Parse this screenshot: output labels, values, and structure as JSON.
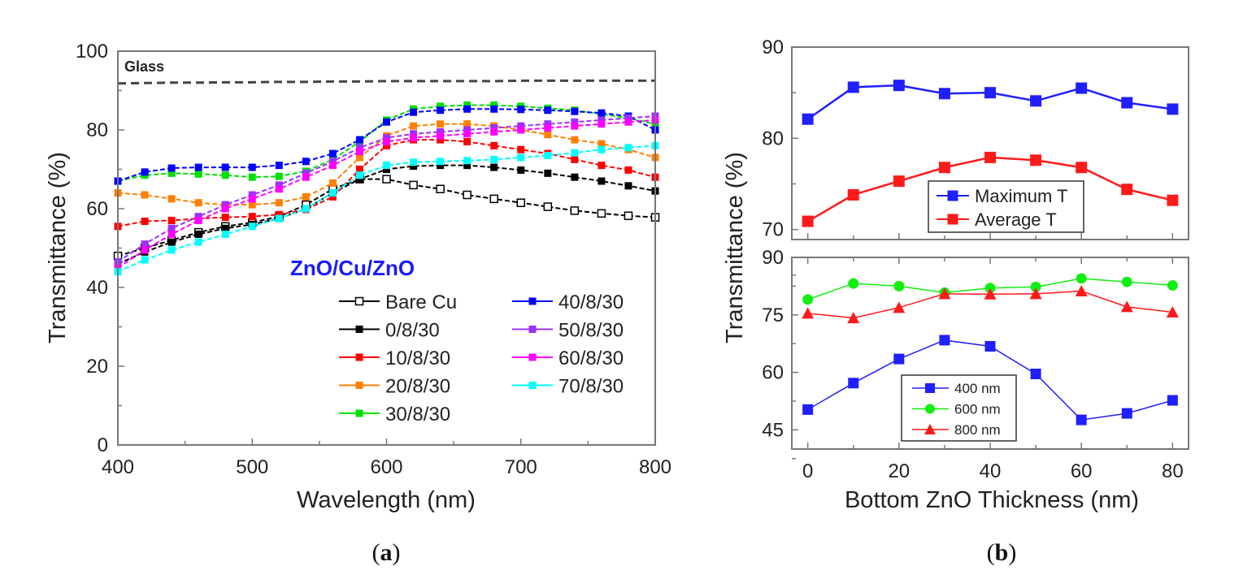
{
  "chart_data": [
    {
      "type": "line",
      "panel_label": "a",
      "xlabel": "Wavelength (nm)",
      "ylabel": "Transmittance (%)",
      "xlim": [
        400,
        800
      ],
      "ylim": [
        0,
        100
      ],
      "xticks": [
        400,
        500,
        600,
        700,
        800
      ],
      "yticks": [
        0,
        20,
        40,
        60,
        80,
        100
      ],
      "annotation": "Glass",
      "legend_title": "ZnO/Cu/ZnO",
      "legend_title_color": "#1a1aff",
      "legend_placement": "bottom-right",
      "x": [
        400,
        420,
        440,
        460,
        480,
        500,
        520,
        540,
        560,
        580,
        600,
        620,
        640,
        660,
        680,
        700,
        720,
        740,
        760,
        780,
        800
      ],
      "glass": {
        "name": "Glass",
        "color": "#444444",
        "values": [
          91.8,
          91.9,
          92,
          92,
          92.1,
          92.1,
          92.2,
          92.2,
          92.3,
          92.3,
          92.4,
          92.4,
          92.4,
          92.4,
          92.4,
          92.5,
          92.5,
          92.5,
          92.5,
          92.5,
          92.5
        ]
      },
      "series": [
        {
          "name": "Bare Cu",
          "color": "#000000",
          "open": true,
          "values": [
            48,
            50,
            52,
            54,
            55.5,
            56.5,
            58,
            61,
            65,
            67.5,
            67.5,
            66,
            65,
            63.5,
            62.5,
            61.5,
            60.5,
            59.5,
            58.8,
            58.2,
            57.8
          ]
        },
        {
          "name": "0/8/30",
          "color": "#000000",
          "values": [
            46,
            49,
            51.5,
            53.5,
            55,
            56,
            57.5,
            60,
            64,
            67.5,
            70,
            70.8,
            71,
            71,
            70.5,
            69.8,
            69,
            68,
            67,
            65.8,
            64.5
          ]
        },
        {
          "name": "10/8/30",
          "color": "#ff0000",
          "values": [
            55.5,
            56.8,
            57,
            57.5,
            57.8,
            58,
            58.5,
            59.8,
            63,
            70,
            76,
            77.5,
            77.5,
            77,
            76,
            75,
            74,
            72.5,
            71,
            69.8,
            68
          ]
        },
        {
          "name": "20/8/30",
          "color": "#ff8000",
          "values": [
            64,
            63.5,
            62.5,
            61.5,
            61,
            61,
            61.5,
            63,
            66.5,
            73,
            78.5,
            81,
            81.5,
            81.5,
            81,
            80,
            78.8,
            77.5,
            76.5,
            75,
            73
          ]
        },
        {
          "name": "30/8/30",
          "color": "#00e000",
          "values": [
            67,
            68.5,
            69,
            68.8,
            68.5,
            68,
            68.2,
            69.5,
            72.5,
            77,
            82.5,
            85.3,
            86,
            86.3,
            86.3,
            86,
            85.5,
            85,
            84,
            83,
            81.5
          ]
        },
        {
          "name": "40/8/30",
          "color": "#0000ff",
          "values": [
            67,
            69.3,
            70.3,
            70.5,
            70.5,
            70.5,
            71,
            72,
            74,
            77.5,
            82,
            84.5,
            85,
            85.3,
            85.3,
            85.2,
            85,
            84.7,
            84.3,
            83.5,
            80
          ]
        },
        {
          "name": "50/8/30",
          "color": "#9b30ff",
          "values": [
            46.5,
            51,
            55,
            58,
            61,
            63.5,
            66,
            69,
            72,
            75.5,
            78,
            79,
            79.5,
            80,
            80.5,
            81,
            81.5,
            82,
            82.5,
            83,
            83.5
          ]
        },
        {
          "name": "60/8/30",
          "color": "#ff00ff",
          "values": [
            45,
            49.5,
            53.5,
            57,
            60,
            62.5,
            65,
            68,
            71,
            74.5,
            77,
            78,
            78.5,
            79,
            79.5,
            80,
            80.5,
            81,
            81.5,
            82,
            82.5
          ]
        },
        {
          "name": "70/8/30",
          "color": "#00ffff",
          "values": [
            44,
            47,
            49.5,
            51.5,
            53.5,
            55.5,
            57.5,
            60,
            64,
            68.5,
            71,
            71.8,
            72,
            72.2,
            72.5,
            73,
            73.5,
            74.2,
            75,
            75.5,
            76
          ]
        }
      ]
    },
    {
      "type": "line",
      "panel_label": "b",
      "xlabel": "Bottom ZnO Thickness (nm)",
      "ylabel": "Transmittance (%)",
      "x": [
        0,
        10,
        20,
        30,
        40,
        50,
        60,
        70,
        80
      ],
      "xticks": [
        0,
        20,
        40,
        60,
        80
      ],
      "xlim": [
        -3.5,
        83.5
      ],
      "subplots": [
        {
          "name": "top",
          "ylim": [
            68.9,
            90
          ],
          "yticks": [
            70,
            80,
            90
          ],
          "legend_placement": "bottom-center",
          "series": [
            {
              "name": "Maximum T",
              "color": "#1f1fff",
              "marker": "square",
              "values": [
                82.1,
                85.6,
                85.8,
                84.9,
                85.0,
                84.1,
                85.5,
                83.9,
                83.2
              ]
            },
            {
              "name": "Average T",
              "color": "#ff1a1a",
              "marker": "square",
              "values": [
                70.9,
                73.8,
                75.3,
                76.8,
                77.9,
                77.6,
                76.8,
                74.4,
                73.2
              ]
            }
          ]
        },
        {
          "name": "bottom",
          "ylim": [
            40,
            90
          ],
          "yticks": [
            45,
            60,
            75,
            90
          ],
          "legend_placement": "bottom-left",
          "series": [
            {
              "name": "400 nm",
              "color": "#1f1fff",
              "marker": "square",
              "values": [
                50.3,
                57.2,
                63.5,
                68.4,
                66.8,
                59.6,
                47.6,
                49.3,
                52.7
              ]
            },
            {
              "name": "600 nm",
              "color": "#11ee11",
              "marker": "circle",
              "values": [
                79.0,
                83.2,
                82.5,
                80.8,
                82.0,
                82.3,
                84.5,
                83.6,
                82.7
              ]
            },
            {
              "name": "800 nm",
              "color": "#ff1a1a",
              "marker": "triangle",
              "values": [
                75.4,
                74.2,
                76.9,
                80.5,
                80.4,
                80.5,
                81.2,
                77.1,
                75.7
              ]
            }
          ]
        }
      ]
    }
  ]
}
